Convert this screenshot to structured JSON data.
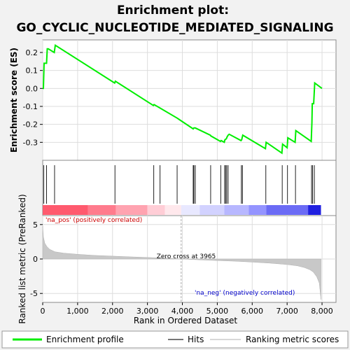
{
  "chart_data": {
    "type": "line",
    "title_line1": "Enrichment plot:",
    "title_line2": "GO_CYCLIC_NUCLEOTIDE_MEDIATED_SIGNALING",
    "es_panel": {
      "ylabel": "Enrichment score (ES)",
      "ylim": [
        -0.4,
        0.27
      ],
      "yticks": [
        -0.3,
        -0.2,
        -0.1,
        0.0,
        0.1,
        0.2
      ],
      "ytick_labels": [
        "-0.3",
        "-0.2",
        "-0.1",
        "0.0",
        "0.1",
        "0.2"
      ],
      "line_color": "#00ee00",
      "points": [
        [
          0,
          0.0
        ],
        [
          20,
          0.0
        ],
        [
          40,
          0.14
        ],
        [
          60,
          0.14
        ],
        [
          110,
          0.14
        ],
        [
          130,
          0.22
        ],
        [
          160,
          0.22
        ],
        [
          330,
          0.2
        ],
        [
          360,
          0.24
        ],
        [
          2060,
          0.03
        ],
        [
          2080,
          0.04
        ],
        [
          3170,
          -0.095
        ],
        [
          3190,
          -0.09
        ],
        [
          3370,
          -0.11
        ],
        [
          3850,
          -0.165
        ],
        [
          4310,
          -0.225
        ],
        [
          4330,
          -0.22
        ],
        [
          4370,
          -0.22
        ],
        [
          4800,
          -0.26
        ],
        [
          4820,
          -0.265
        ],
        [
          5090,
          -0.295
        ],
        [
          5110,
          -0.29
        ],
        [
          5200,
          -0.3
        ],
        [
          5220,
          -0.285
        ],
        [
          5260,
          -0.28
        ],
        [
          5280,
          -0.27
        ],
        [
          5310,
          -0.26
        ],
        [
          5340,
          -0.255
        ],
        [
          5680,
          -0.29
        ],
        [
          5700,
          -0.285
        ],
        [
          5730,
          -0.26
        ],
        [
          6380,
          -0.335
        ],
        [
          6400,
          -0.3
        ],
        [
          6850,
          -0.36
        ],
        [
          6870,
          -0.31
        ],
        [
          7000,
          -0.33
        ],
        [
          7020,
          -0.275
        ],
        [
          7230,
          -0.3
        ],
        [
          7250,
          -0.235
        ],
        [
          7690,
          -0.295
        ],
        [
          7710,
          -0.19
        ],
        [
          7720,
          -0.085
        ],
        [
          7760,
          -0.085
        ],
        [
          7790,
          0.03
        ],
        [
          8000,
          0.0
        ]
      ]
    },
    "hits": [
      30,
      110,
      340,
      2070,
      3180,
      3360,
      3850,
      4310,
      4330,
      4370,
      4810,
      5100,
      5210,
      5240,
      5270,
      5310,
      5690,
      5720,
      6390,
      6860,
      7010,
      7240,
      7700,
      7730,
      7780
    ],
    "heat_bar": {
      "segments": [
        {
          "x0": 0,
          "x1": 1300,
          "color": "#ff5a6e"
        },
        {
          "x0": 1300,
          "x1": 2100,
          "color": "#ff7b8d"
        },
        {
          "x0": 2100,
          "x1": 3000,
          "color": "#ffa3b0"
        },
        {
          "x0": 3000,
          "x1": 3500,
          "color": "#ffcdd6"
        },
        {
          "x0": 3500,
          "x1": 3965,
          "color": "#ffe8ec"
        },
        {
          "x0": 3965,
          "x1": 4500,
          "color": "#e8e8ff"
        },
        {
          "x0": 4500,
          "x1": 5200,
          "color": "#d2d2ff"
        },
        {
          "x0": 5200,
          "x1": 5900,
          "color": "#b7b7ff"
        },
        {
          "x0": 5900,
          "x1": 6400,
          "color": "#9494ff"
        },
        {
          "x0": 6400,
          "x1": 7600,
          "color": "#6b6bf5"
        },
        {
          "x0": 7600,
          "x1": 7970,
          "color": "#2020e0"
        }
      ]
    },
    "metric_panel": {
      "ylabel": "Ranked list metric (PreRanked)",
      "ylim": [
        -6.3,
        6.3
      ],
      "yticks": [
        -5,
        0,
        5
      ],
      "ytick_labels": [
        "-5",
        "0",
        "5"
      ],
      "profile": [
        [
          0,
          4.8
        ],
        [
          20,
          3.2
        ],
        [
          60,
          2.3
        ],
        [
          120,
          1.8
        ],
        [
          200,
          1.4
        ],
        [
          350,
          1.05
        ],
        [
          600,
          0.85
        ],
        [
          1000,
          0.68
        ],
        [
          1500,
          0.52
        ],
        [
          2000,
          0.42
        ],
        [
          2500,
          0.32
        ],
        [
          3000,
          0.22
        ],
        [
          3500,
          0.12
        ],
        [
          3965,
          0.0
        ],
        [
          4500,
          -0.12
        ],
        [
          5000,
          -0.22
        ],
        [
          5500,
          -0.32
        ],
        [
          6000,
          -0.45
        ],
        [
          6500,
          -0.6
        ],
        [
          7000,
          -0.8
        ],
        [
          7300,
          -1.0
        ],
        [
          7500,
          -1.25
        ],
        [
          7650,
          -1.55
        ],
        [
          7750,
          -1.9
        ],
        [
          7850,
          -2.6
        ],
        [
          7920,
          -3.5
        ],
        [
          7970,
          -5.9
        ]
      ],
      "zero_cross_label": "Zero cross at 3965",
      "zero_cross_x": 3965,
      "pos_label": "'na_pos' (positively correlated)",
      "neg_label": "'na_neg' (negatively correlated)"
    },
    "xlabel": "Rank in Ordered Dataset",
    "xlim": [
      0,
      8400
    ],
    "xticks": [
      0,
      1000,
      2000,
      3000,
      4000,
      5000,
      6000,
      7000,
      8000
    ],
    "xtick_labels": [
      "0",
      "1,000",
      "2,000",
      "3,000",
      "4,000",
      "5,000",
      "6,000",
      "7,000",
      "8,000"
    ],
    "legend": [
      {
        "label": "Enrichment profile",
        "color": "#00ee00"
      },
      {
        "label": "Hits",
        "color": "#777777"
      },
      {
        "label": "Ranking metric scores",
        "color": "#cccccc"
      }
    ]
  }
}
